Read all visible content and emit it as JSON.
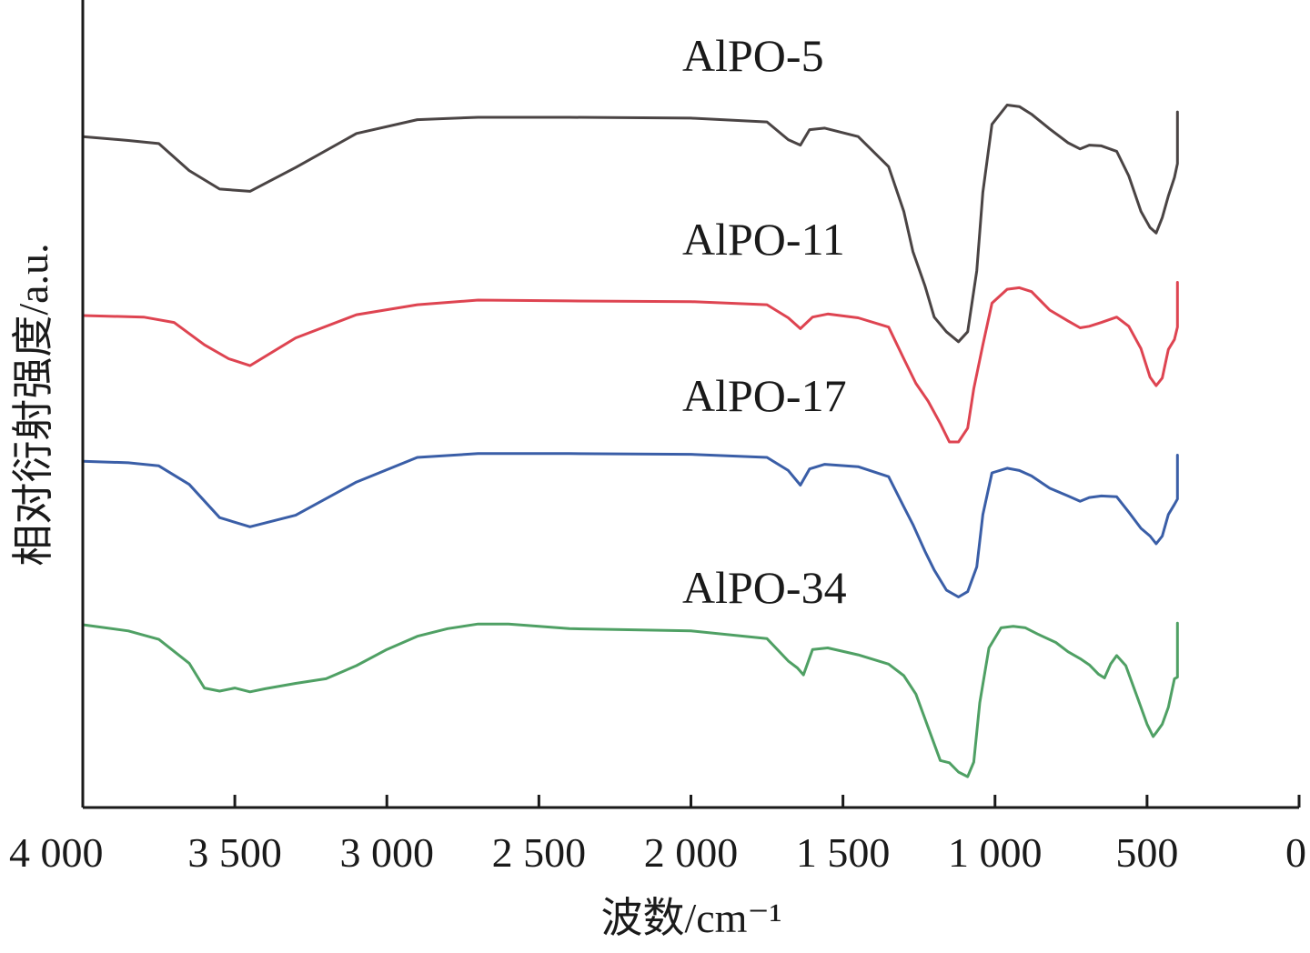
{
  "chart_data": {
    "type": "line",
    "title": "",
    "xlabel": "波数/cm⁻¹",
    "ylabel": "相对衍射强度/a.u.",
    "xlim": [
      4000,
      0
    ],
    "x_reversed": true,
    "xticks": [
      {
        "value": 4000,
        "label": "4 000"
      },
      {
        "value": 3500,
        "label": "3 500"
      },
      {
        "value": 3000,
        "label": "3 000"
      },
      {
        "value": 2500,
        "label": "2 500"
      },
      {
        "value": 2000,
        "label": "2 000"
      },
      {
        "value": 1500,
        "label": "1 500"
      },
      {
        "value": 1000,
        "label": "1 000"
      },
      {
        "value": 500,
        "label": "500"
      },
      {
        "value": 0,
        "label": "0"
      }
    ],
    "yticks": [],
    "grid": false,
    "legend": "none",
    "ylim": [
      0,
      100
    ],
    "series": [
      {
        "name": "AlPO-5",
        "color": "#4a4444",
        "x": [
          4000,
          3850,
          3750,
          3650,
          3550,
          3450,
          3300,
          3100,
          2900,
          2700,
          2400,
          2000,
          1750,
          1680,
          1640,
          1610,
          1560,
          1450,
          1350,
          1300,
          1270,
          1230,
          1200,
          1160,
          1120,
          1090,
          1060,
          1040,
          1010,
          960,
          920,
          880,
          820,
          760,
          720,
          690,
          650,
          600,
          560,
          520,
          490,
          470,
          450,
          430,
          410,
          400,
          400
        ],
        "y": [
          87.0,
          86.5,
          86.1,
          82.6,
          80.2,
          79.9,
          83.0,
          87.4,
          89.2,
          89.5,
          89.5,
          89.4,
          88.9,
          86.6,
          85.9,
          87.9,
          88.1,
          87.0,
          83.1,
          77.3,
          72.1,
          67.6,
          63.6,
          61.7,
          60.4,
          61.7,
          69.6,
          79.8,
          88.6,
          91.1,
          90.9,
          89.9,
          88.0,
          86.2,
          85.4,
          85.9,
          85.8,
          85.1,
          81.9,
          77.3,
          75.2,
          74.5,
          76.5,
          79.3,
          81.7,
          83.5,
          90.2
        ]
      },
      {
        "name": "AlPO-11",
        "color": "#de4451",
        "x": [
          4000,
          3800,
          3700,
          3600,
          3520,
          3450,
          3300,
          3100,
          2900,
          2700,
          2400,
          2000,
          1750,
          1680,
          1640,
          1600,
          1550,
          1450,
          1350,
          1300,
          1260,
          1220,
          1180,
          1150,
          1120,
          1090,
          1070,
          1040,
          1010,
          960,
          920,
          880,
          820,
          760,
          720,
          690,
          650,
          600,
          560,
          520,
          490,
          470,
          450,
          430,
          410,
          400,
          400
        ],
        "y": [
          63.8,
          63.6,
          62.9,
          60.0,
          58.2,
          57.3,
          60.9,
          63.9,
          65.2,
          65.8,
          65.7,
          65.6,
          65.2,
          63.5,
          62.1,
          63.6,
          64.0,
          63.5,
          62.3,
          58.2,
          55.0,
          52.7,
          49.8,
          47.4,
          47.4,
          49.2,
          54.3,
          60.0,
          65.4,
          67.2,
          67.4,
          66.9,
          64.5,
          63.1,
          62.2,
          62.4,
          62.9,
          63.6,
          62.4,
          59.5,
          55.8,
          54.7,
          55.7,
          59.4,
          60.7,
          62.3,
          68.1
        ]
      },
      {
        "name": "AlPO-17",
        "color": "#3a5ea7",
        "x": [
          4000,
          3850,
          3750,
          3650,
          3550,
          3450,
          3300,
          3100,
          2900,
          2700,
          2400,
          2000,
          1750,
          1680,
          1640,
          1610,
          1560,
          1450,
          1350,
          1300,
          1270,
          1230,
          1200,
          1160,
          1120,
          1090,
          1060,
          1040,
          1010,
          960,
          920,
          880,
          820,
          760,
          720,
          690,
          650,
          600,
          560,
          520,
          490,
          470,
          450,
          430,
          410,
          400,
          400
        ],
        "y": [
          44.9,
          44.7,
          44.3,
          41.9,
          37.6,
          36.4,
          37.9,
          42.2,
          45.4,
          45.9,
          45.9,
          45.8,
          45.4,
          43.7,
          41.8,
          43.9,
          44.5,
          44.2,
          42.9,
          39.0,
          36.7,
          33.2,
          30.8,
          28.2,
          27.3,
          28.0,
          31.2,
          38.0,
          43.4,
          44.0,
          43.7,
          43.0,
          41.4,
          40.4,
          39.7,
          40.2,
          40.4,
          40.3,
          38.3,
          36.2,
          35.2,
          34.2,
          35.2,
          38.0,
          39.3,
          40.0,
          45.7
        ]
      },
      {
        "name": "AlPO-34",
        "color": "#4fa064",
        "x": [
          4000,
          3850,
          3750,
          3650,
          3600,
          3550,
          3500,
          3450,
          3400,
          3300,
          3200,
          3100,
          3000,
          2900,
          2800,
          2700,
          2600,
          2400,
          2000,
          1750,
          1680,
          1650,
          1630,
          1600,
          1550,
          1450,
          1350,
          1300,
          1260,
          1220,
          1180,
          1150,
          1120,
          1090,
          1070,
          1050,
          1020,
          980,
          940,
          900,
          860,
          800,
          760,
          720,
          690,
          660,
          640,
          620,
          600,
          570,
          530,
          500,
          480,
          470,
          450,
          430,
          410,
          400,
          400
        ],
        "y": [
          23.7,
          22.9,
          21.8,
          18.7,
          15.5,
          15.1,
          15.5,
          15.0,
          15.4,
          16.1,
          16.7,
          18.4,
          20.5,
          22.2,
          23.2,
          23.8,
          23.8,
          23.2,
          22.9,
          21.9,
          19.0,
          18.1,
          17.2,
          20.5,
          20.7,
          19.8,
          18.6,
          17.1,
          14.7,
          10.4,
          6.1,
          5.8,
          4.6,
          4.0,
          5.9,
          13.6,
          20.7,
          23.3,
          23.5,
          23.3,
          22.5,
          21.4,
          20.2,
          19.3,
          18.5,
          17.3,
          16.8,
          18.6,
          19.7,
          18.4,
          14.1,
          10.8,
          9.2,
          9.7,
          10.8,
          13.0,
          16.7,
          16.9,
          23.9
        ]
      }
    ]
  }
}
